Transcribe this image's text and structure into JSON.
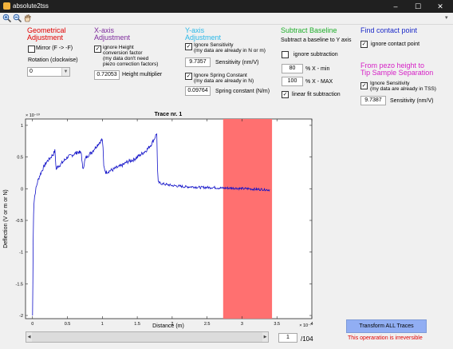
{
  "window": {
    "title": "absolute2tss",
    "minimize": "–",
    "maximize": "☐",
    "close": "✕"
  },
  "toolbar": {
    "icons": [
      "zoom-in-icon",
      "zoom-out-icon",
      "pan-icon"
    ],
    "corner": "▾"
  },
  "geometrical": {
    "title_line1": "Geometrical",
    "title_line2": "Adjustment",
    "mirror_label": "Mirror (F -> -F)",
    "mirror_checked": false,
    "rotation_label": "Rotation (clockwise)",
    "rotation_value": "0"
  },
  "xaxis": {
    "title_line1": "X-axis",
    "title_line2": "Adjustment",
    "ignore_line1": "ignore Height",
    "ignore_line2": "conversion factor",
    "ignore_line3": "(my data don't need",
    "ignore_line4": "piezo correction factors)",
    "ignore_checked": true,
    "multiplier_value": "0.72053",
    "multiplier_label": "Height multiplier"
  },
  "yaxis": {
    "title_line1": "Y-axis",
    "title_line2": "Adjustment",
    "ign_sens_line1": "Ignore Sensitivity",
    "ign_sens_line2": "(my data are already in N or m)",
    "ign_sens_checked": true,
    "sensitivity_value": "9.7357",
    "sensitivity_label": "Sensitivity (nm/V)",
    "ign_spring_line1": "Ignore Spring Constant",
    "ign_spring_line2": "(my data are already in N)",
    "ign_spring_checked": true,
    "spring_value": "0.09764",
    "spring_label": "Spring constant (N/m)"
  },
  "baseline": {
    "title": "Subtract Baseline",
    "subtitle": "Subtract a baseline to Y axis",
    "ignore_label": "ignore subtraction",
    "ignore_checked": false,
    "xmin_value": "80",
    "xmin_label": "%  X - min",
    "xmax_value": "100",
    "xmax_label": "%  X - MAX",
    "linear_label": "linear fit subtraction",
    "linear_checked": true
  },
  "contact": {
    "title": "Find contact point",
    "ignore_label": "ignore contact point",
    "ignore_checked": true
  },
  "tss": {
    "title_line1": "From pezo height to",
    "title_line2": "Tip Sample Separation",
    "ign_line1": "Ignore Sensitivity",
    "ign_line2": "(my data are already in TSS)",
    "ign_checked": true,
    "sens_value": "9.7387",
    "sens_label": "Sensitivity (nm/V)"
  },
  "chart_data": {
    "type": "line",
    "title": "Trace nr. 1",
    "xlabel": "Distance (m)",
    "ylabel": "Deflection (V or m or N)",
    "x_exponent": "× 10⁻⁷",
    "y_exponent": "× 10⁻¹⁰",
    "xlim": [
      -0.1,
      4.0
    ],
    "ylim": [
      -2.05,
      1.1
    ],
    "xticks": [
      0,
      0.5,
      1,
      1.5,
      2,
      2.5,
      3,
      3.5,
      4
    ],
    "xtick_labels": [
      "0",
      "0.5",
      "1",
      "1.5",
      "2",
      "2.5",
      "3",
      "3.5",
      "4"
    ],
    "yticks": [
      -2,
      -1.5,
      -1,
      -0.5,
      0,
      0.5,
      1
    ],
    "ytick_labels": [
      "-2",
      "-1.5",
      "-1",
      "-0.5",
      "0",
      "0.5",
      "1"
    ],
    "line_color": "#1010c8",
    "baseline_region": {
      "x_start": 2.73,
      "x_end": 3.43,
      "color": "#ff7070"
    },
    "series": [
      {
        "x": [
          0,
          0.005,
          0.01,
          0.015,
          0.02,
          0.03,
          0.04,
          0.05,
          0.07,
          0.1,
          0.15,
          0.2,
          0.25,
          0.3,
          0.32,
          0.34,
          0.36,
          0.4,
          0.45,
          0.5,
          0.55,
          0.6,
          0.65,
          0.7,
          0.72,
          0.74,
          0.76,
          0.8,
          0.85,
          0.9,
          0.95,
          1.0,
          1.01,
          1.02,
          1.05,
          1.1,
          1.15,
          1.2,
          1.25,
          1.3,
          1.35,
          1.4,
          1.45,
          1.5,
          1.55,
          1.6,
          1.65,
          1.7,
          1.75,
          1.78,
          1.79,
          1.8,
          1.85,
          1.9,
          1.95,
          2.0,
          2.1,
          2.2,
          2.3,
          2.4,
          2.5,
          2.6,
          2.7,
          2.8,
          2.9,
          3.0,
          3.1,
          3.2,
          3.3,
          3.4
        ],
        "y": [
          -2.0,
          -1.5,
          -0.8,
          -0.4,
          -0.25,
          -0.12,
          -0.05,
          0.0,
          0.1,
          0.2,
          0.32,
          0.42,
          0.48,
          0.55,
          0.6,
          0.3,
          0.35,
          0.38,
          0.44,
          0.5,
          0.52,
          0.55,
          0.58,
          0.56,
          0.3,
          0.4,
          0.48,
          0.53,
          0.58,
          0.65,
          0.72,
          0.78,
          0.62,
          0.35,
          0.26,
          0.28,
          0.3,
          0.33,
          0.35,
          0.38,
          0.42,
          0.44,
          0.46,
          0.5,
          0.54,
          0.58,
          0.63,
          0.7,
          0.8,
          0.88,
          0.3,
          0.1,
          0.08,
          0.07,
          0.06,
          0.05,
          0.04,
          0.03,
          0.03,
          0.02,
          0.02,
          0.02,
          0.01,
          0.01,
          0.01,
          0.0,
          0.0,
          -0.01,
          -0.01,
          -0.02
        ]
      }
    ]
  },
  "footer": {
    "transform_label": "Transform ALL Traces",
    "warning": "This operaration is irreversible",
    "trace_value": "1",
    "trace_total": "/104"
  }
}
